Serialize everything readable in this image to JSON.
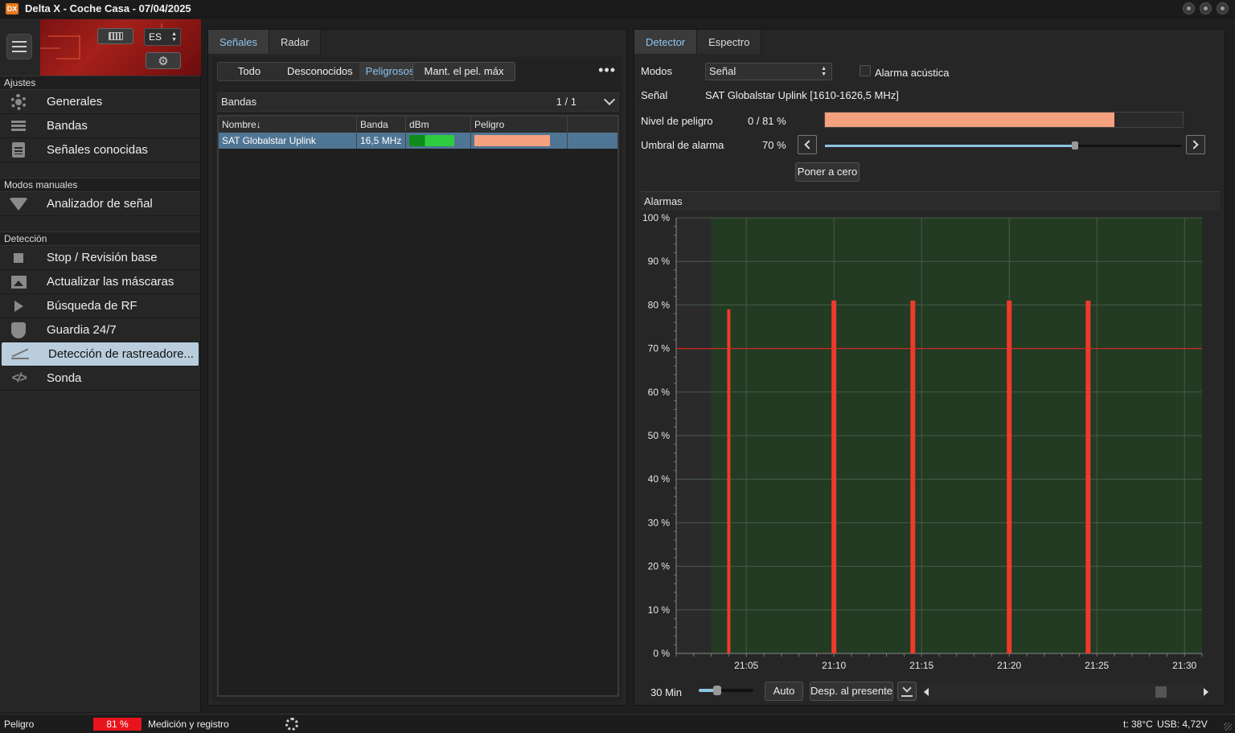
{
  "window": {
    "title": "Delta X - Coche Casa - 07/04/2025",
    "logo_text": "DX"
  },
  "sidebar": {
    "language": "ES",
    "sections": [
      {
        "title": "Ajustes",
        "items": [
          {
            "label": "Generales",
            "icon": "gear-icon"
          },
          {
            "label": "Bandas",
            "icon": "list-icon"
          },
          {
            "label": "Señales conocidas",
            "icon": "clipboard-icon"
          }
        ]
      },
      {
        "title": "Modos manuales",
        "items": [
          {
            "label": "Analizador de señal",
            "icon": "wifi-icon"
          }
        ]
      },
      {
        "title": "Detección",
        "items": [
          {
            "label": "Stop / Revisión base",
            "icon": "stop-icon"
          },
          {
            "label": "Actualizar las máscaras",
            "icon": "image-icon"
          },
          {
            "label": "Búsqueda de RF",
            "icon": "play-icon"
          },
          {
            "label": "Guardia 24/7",
            "icon": "shield-icon"
          },
          {
            "label": "Detección de rastreadore...",
            "icon": "trend-icon",
            "active": true
          },
          {
            "label": "Sonda",
            "icon": "code-icon"
          }
        ]
      }
    ]
  },
  "middle": {
    "tabs": [
      "Señales",
      "Radar"
    ],
    "active_tab": "Señales",
    "filters": [
      "Todo",
      "Desconocidos",
      "Peligrosos"
    ],
    "active_filter": "Peligrosos",
    "hold_button": "Mant. el pel. máx",
    "more_button": "•••",
    "bands_title": "Bandas",
    "page": "1 / 1",
    "table": {
      "columns": [
        "Nombre↓",
        "Banda",
        "dBm",
        "Peligro"
      ],
      "rows": [
        {
          "name": "SAT Globalstar Uplink",
          "band": "16,5 MHz",
          "dbm_level": 0.35,
          "danger_level": 0.81
        }
      ]
    }
  },
  "right": {
    "tabs": [
      "Detector",
      "Espectro"
    ],
    "active_tab": "Detector",
    "modes_label": "Modos",
    "mode_value": "Señal",
    "acoustic_alarm_label": "Alarma acústica",
    "signal_label": "Señal",
    "signal_value": "SAT Globalstar Uplink [1610-1626,5 MHz]",
    "danger_label": "Nivel de peligro",
    "danger_value": "0 / 81 %",
    "danger_fill": 0.81,
    "threshold_label": "Umbral de alarma",
    "threshold_value": "70 %",
    "threshold_fill": 0.7,
    "reset_button": "Poner a cero",
    "alarms_title": "Alarmas",
    "time_window": "30 Min",
    "auto_button": "Auto",
    "present_button": "Desp. al presente",
    "colors": {
      "plot_bg": "#233a23",
      "bar": "#ee3a2c",
      "threshold_line": "#d0281e"
    }
  },
  "chart_data": {
    "type": "bar",
    "title": "Alarmas",
    "xlabel": "",
    "ylabel": "",
    "y_unit": "%",
    "ylim": [
      0,
      100
    ],
    "yticks": [
      0,
      10,
      20,
      30,
      40,
      50,
      60,
      70,
      80,
      90,
      100
    ],
    "xlim": [
      "21:01",
      "21:31"
    ],
    "xticks": [
      "21:05",
      "21:10",
      "21:15",
      "21:20",
      "21:25",
      "21:30"
    ],
    "active_from": "21:03",
    "threshold": 70,
    "x": [
      "21:04",
      "21:10",
      "21:14.5",
      "21:20",
      "21:24.5"
    ],
    "values": [
      79,
      81,
      81,
      81,
      81
    ],
    "grid": true
  },
  "status": {
    "danger_label": "Peligro",
    "danger_value": "81 %",
    "mode": "Medición y registro",
    "temperature": "t: 38°C",
    "usb": "USB: 4,72V"
  }
}
